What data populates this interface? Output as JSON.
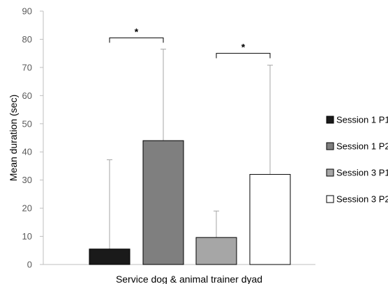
{
  "chart_data": {
    "type": "bar",
    "title": "",
    "xlabel": "Service dog & animal trainer dyad",
    "ylabel": "Mean duration (sec)",
    "ylim": [
      0,
      90
    ],
    "yticks": [
      "0",
      "10",
      "20",
      "30",
      "40",
      "50",
      "60",
      "70",
      "80",
      "90"
    ],
    "grid": false,
    "legend_position": "right",
    "series": [
      {
        "name": "Session 1 P1",
        "value": 5.5,
        "error_upper": 37.2,
        "color": "#1a1a1a"
      },
      {
        "name": "Session 1 P2",
        "value": 44,
        "error_upper": 76.5,
        "color": "#7f7f7f"
      },
      {
        "name": "Session 3 P1",
        "value": 9.6,
        "error_upper": 19,
        "color": "#a6a6a6"
      },
      {
        "name": "Session 3 P2",
        "value": 32,
        "error_upper": 70.8,
        "color": "#ffffff"
      }
    ],
    "significance": [
      {
        "label": "*",
        "from": 0,
        "to": 1,
        "level": 80.5
      },
      {
        "label": "*",
        "from": 2,
        "to": 3,
        "level": 75
      }
    ]
  }
}
